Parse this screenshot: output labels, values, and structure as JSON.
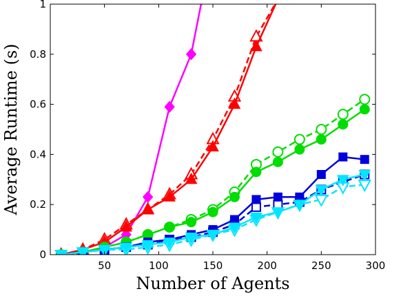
{
  "chart_data": {
    "type": "line",
    "xlabel": "Number of Agents",
    "ylabel": "Average Runtime (s)",
    "xlim": [
      0,
      300
    ],
    "ylim": [
      0,
      1
    ],
    "xticks": [
      50,
      100,
      150,
      200,
      250,
      300
    ],
    "yticks": [
      0,
      0.2,
      0.4,
      0.6,
      0.8,
      1
    ],
    "xtick_labels": [
      "50",
      "100",
      "150",
      "200",
      "250",
      "300"
    ],
    "ytick_labels": [
      "0",
      "0.2",
      "0.4",
      "0.6",
      "0.8",
      "1"
    ],
    "grid": false,
    "series": [
      {
        "color": "#ff00ff",
        "marker": "diamond",
        "filled": true,
        "dash": false,
        "x": [
          10,
          30,
          50,
          70,
          90,
          110,
          130,
          140
        ],
        "y": [
          0.0,
          0.01,
          0.03,
          0.08,
          0.23,
          0.59,
          0.8,
          1.02
        ]
      },
      {
        "color": "#ff0000",
        "marker": "triangle",
        "filled": false,
        "dash": true,
        "x": [
          10,
          30,
          50,
          70,
          90,
          110,
          130,
          150,
          170,
          190,
          210
        ],
        "y": [
          0.0,
          0.02,
          0.06,
          0.12,
          0.18,
          0.24,
          0.32,
          0.46,
          0.63,
          0.87,
          1.02
        ]
      },
      {
        "color": "#ff0000",
        "marker": "triangle",
        "filled": true,
        "dash": false,
        "x": [
          10,
          30,
          50,
          70,
          90,
          110,
          130,
          150,
          170,
          190,
          210
        ],
        "y": [
          0.0,
          0.02,
          0.05,
          0.11,
          0.18,
          0.23,
          0.3,
          0.43,
          0.6,
          0.83,
          1.02
        ]
      },
      {
        "color": "#00dd00",
        "marker": "circle",
        "filled": false,
        "dash": true,
        "x": [
          10,
          30,
          50,
          70,
          90,
          110,
          130,
          150,
          170,
          190,
          210,
          230,
          250,
          270,
          290
        ],
        "y": [
          0.0,
          0.01,
          0.03,
          0.05,
          0.08,
          0.11,
          0.14,
          0.18,
          0.25,
          0.36,
          0.41,
          0.46,
          0.5,
          0.56,
          0.62
        ]
      },
      {
        "color": "#00dd00",
        "marker": "circle",
        "filled": true,
        "dash": false,
        "x": [
          10,
          30,
          50,
          70,
          90,
          110,
          130,
          150,
          170,
          190,
          210,
          230,
          250,
          270,
          290
        ],
        "y": [
          0.0,
          0.01,
          0.03,
          0.05,
          0.08,
          0.11,
          0.13,
          0.17,
          0.23,
          0.33,
          0.37,
          0.42,
          0.46,
          0.52,
          0.58
        ]
      },
      {
        "color": "#0000dd",
        "marker": "square",
        "filled": false,
        "dash": true,
        "x": [
          10,
          30,
          50,
          70,
          90,
          110,
          130,
          150,
          170,
          190,
          210,
          230,
          250,
          270,
          290
        ],
        "y": [
          0.0,
          0.01,
          0.02,
          0.03,
          0.04,
          0.06,
          0.07,
          0.09,
          0.12,
          0.19,
          0.2,
          0.21,
          0.26,
          0.29,
          0.32
        ]
      },
      {
        "color": "#0000dd",
        "marker": "square",
        "filled": true,
        "dash": false,
        "x": [
          10,
          30,
          50,
          70,
          90,
          110,
          130,
          150,
          170,
          190,
          210,
          230,
          250,
          270,
          290
        ],
        "y": [
          0.0,
          0.01,
          0.02,
          0.03,
          0.05,
          0.06,
          0.08,
          0.1,
          0.14,
          0.22,
          0.23,
          0.23,
          0.32,
          0.39,
          0.38
        ]
      },
      {
        "color": "#00e5ff",
        "marker": "triangle-down",
        "filled": false,
        "dash": true,
        "x": [
          10,
          30,
          50,
          70,
          90,
          110,
          130,
          150,
          170,
          190,
          210,
          230,
          250,
          270,
          290
        ],
        "y": [
          0.0,
          0.01,
          0.02,
          0.02,
          0.03,
          0.04,
          0.06,
          0.08,
          0.1,
          0.14,
          0.17,
          0.2,
          0.22,
          0.27,
          0.28
        ]
      },
      {
        "color": "#00e5ff",
        "marker": "triangle-down",
        "filled": true,
        "dash": false,
        "x": [
          10,
          30,
          50,
          70,
          90,
          110,
          130,
          150,
          170,
          190,
          210,
          230,
          250,
          270,
          290
        ],
        "y": [
          0.0,
          0.01,
          0.02,
          0.03,
          0.04,
          0.05,
          0.07,
          0.08,
          0.11,
          0.15,
          0.17,
          0.2,
          0.26,
          0.3,
          0.32
        ]
      }
    ]
  }
}
